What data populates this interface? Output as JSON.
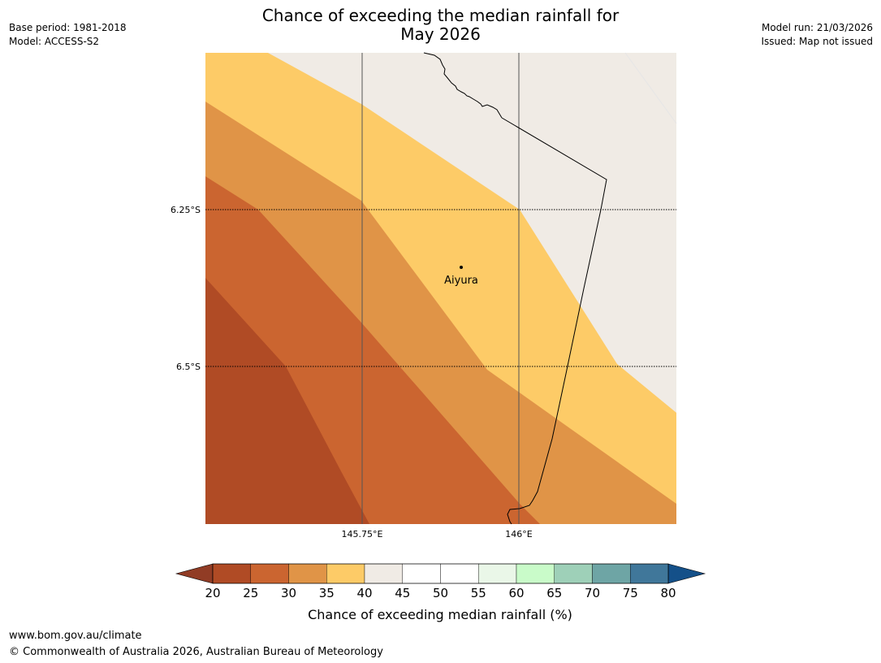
{
  "title": {
    "line1": "Chance of exceeding the median rainfall for",
    "line2": "May 2026"
  },
  "meta_left": {
    "base_period": "Base period: 1981-2018",
    "model": "Model: ACCESS-S2"
  },
  "meta_right": {
    "model_run": "Model run: 21/03/2026",
    "issued": "Issued: Map not issued"
  },
  "map": {
    "place": {
      "name": "Aiyura"
    },
    "lat_labels": [
      "6.25°S",
      "6.5°S"
    ],
    "lon_labels": [
      "145.75°E",
      "146°E"
    ]
  },
  "colorbar": {
    "label": "Chance of exceeding median rainfall (%)",
    "ticks": [
      "20",
      "25",
      "30",
      "35",
      "40",
      "45",
      "50",
      "55",
      "60",
      "65",
      "70",
      "75",
      "80"
    ],
    "low_extend_color": "#913c25",
    "high_extend_color": "#145089",
    "colors": [
      "#b04b25",
      "#cb6530",
      "#e09447",
      "#fdcb67",
      "#f0ebe5",
      "#ffffff",
      "#ffffff",
      "#eaf7e8",
      "#c9fbc9",
      "#9ed0b8",
      "#6ea5a5",
      "#40779a"
    ]
  },
  "footer": {
    "url": "www.bom.gov.au/climate",
    "copyright": "© Commonwealth of Australia 2026, Australian Bureau of Meteorology"
  }
}
